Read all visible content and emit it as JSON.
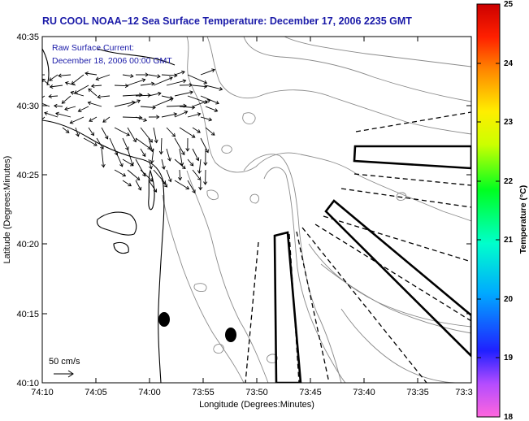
{
  "title": "RU COOL  NOAA−12  Sea Surface Temperature:  December 17, 2006 2235 GMT",
  "subtitle_line1": "Raw Surface Current:",
  "subtitle_line2": "December 18, 2006 00:00 GMT",
  "scale_label": "50 cm/s",
  "xlabel": "Longitude (Degrees:Minutes)",
  "ylabel": "Latitude (Degrees:Minutes)",
  "colorbar_label": "Temperature (°C)",
  "x_ticks": [
    "74:10",
    "74:05",
    "74:00",
    "73:55",
    "73:50",
    "73:45",
    "73:40",
    "73:35",
    "73:3"
  ],
  "y_ticks": [
    "40:35",
    "40:30",
    "40:25",
    "40:20",
    "40:15",
    "40:10"
  ],
  "cb_ticks": [
    "25",
    "24",
    "23",
    "22",
    "21",
    "20",
    "19",
    "18"
  ],
  "colors": {
    "title_text": "#1a1aa8",
    "contour": "#8a8a8a",
    "coast": "#000000"
  },
  "map": {
    "lon_range_minutes_west": [
      [
        74,
        10
      ],
      [
        73,
        30
      ]
    ],
    "lat_range": [
      [
        40,
        10
      ],
      [
        40,
        35
      ]
    ],
    "colorbar_range_c": [
      18,
      25
    ]
  }
}
